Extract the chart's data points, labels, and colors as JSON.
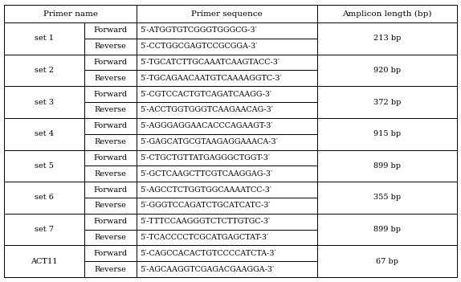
{
  "headers": [
    "Primer name",
    "Primer sequence",
    "Amplicon length (bp)"
  ],
  "sets": [
    {
      "name": "set 1",
      "forward": "5′-ATGGTGTCGGGTGGGCG-3′",
      "reverse": "5′-CCTGGCGAGTCCGCGGA-3′",
      "amplicon": "213 bp"
    },
    {
      "name": "set 2",
      "forward": "5′-TGCATCTTGCAAATCAAGTACC-3′",
      "reverse": "5′-TGCAGAACAATGTCAAAAGGTC-3′",
      "amplicon": "920 bp"
    },
    {
      "name": "set 3",
      "forward": "5′-CGTCCACTGTCAGATCAAGG-3′",
      "reverse": "5′-ACCTGGTGGGTCAAGAACAG-3′",
      "amplicon": "372 bp"
    },
    {
      "name": "set 4",
      "forward": "5′-AGGGAGGAACACCCAGAAGT-3′",
      "reverse": "5′-GAGCATGCGTAAGAGGAAACA-3′",
      "amplicon": "915 bp"
    },
    {
      "name": "set 5",
      "forward": "5′-CTGCTGTTATGAGGGCTGGT-3′",
      "reverse": "5′-GCTCAAGCTTCGTCAAGGAG-3′",
      "amplicon": "899 bp"
    },
    {
      "name": "set 6",
      "forward": "5′-AGCCTCTGGTGGCAAAATCC-3′",
      "reverse": "5′-GGGTCCAGATCTGCATCATC-3′",
      "amplicon": "355 bp"
    },
    {
      "name": "set 7",
      "forward": "5′-TTTCCAAGGGTCTCTTGTGC-3′",
      "reverse": "5′-TCACCCCTCGCATGAGCTAT-3′",
      "amplicon": "899 bp"
    },
    {
      "name": "ACT11",
      "forward": "5′-CAGCCACACTGTCCCCATCTA-3′",
      "reverse": "5′-AGCAAGGTCGAGACGAAGGA-3′",
      "amplicon": "67 bp"
    }
  ],
  "border_color": "#000000",
  "bg_color": "#ffffff",
  "text_color": "#000000",
  "header_fontsize": 7.5,
  "cell_fontsize": 7.0,
  "seq_fontsize": 6.8
}
